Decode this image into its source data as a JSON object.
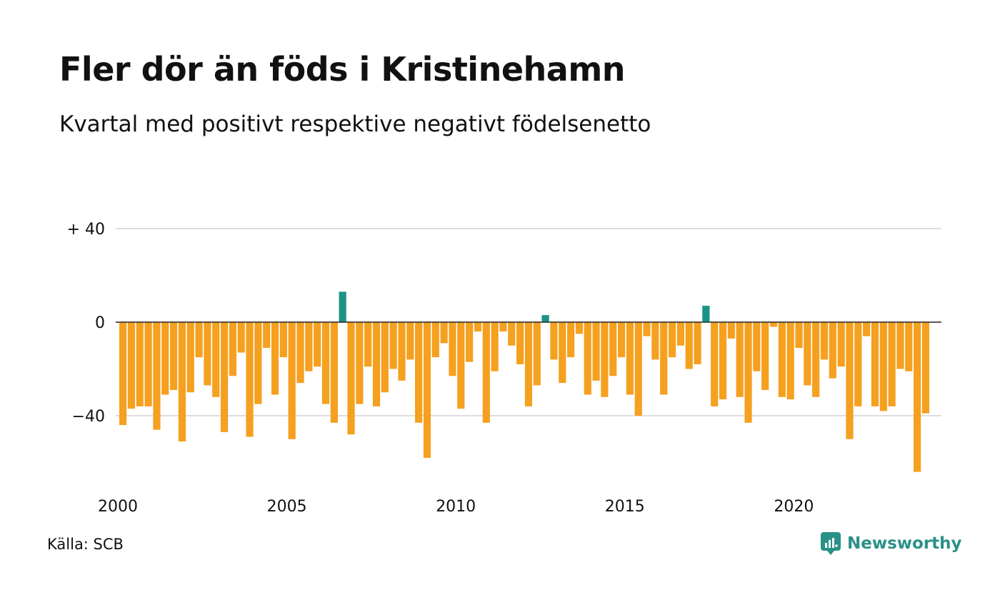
{
  "title": "Fler dör än föds i Kristinehamn",
  "subtitle": "Kvartal med positivt respektive negativt födelsenetto",
  "source": "Källa: SCB",
  "brand": "Newsworthy",
  "colors": {
    "positive": "#1a9386",
    "negative": "#f5a01f",
    "grid": "#dddddd",
    "zero_line": "#222222",
    "brand": "#2a9187"
  },
  "chart_data": {
    "type": "bar",
    "title": "Fler dör än föds i Kristinehamn",
    "subtitle": "Kvartal med positivt respektive negativt födelsenetto",
    "xlabel": "",
    "ylabel": "",
    "ylim": [
      -66,
      40
    ],
    "y_ticks": [
      {
        "value": 40,
        "label": "+ 40"
      },
      {
        "value": 0,
        "label": "0"
      },
      {
        "value": -40,
        "label": "−40"
      }
    ],
    "x_ticks": [
      {
        "value": 2000,
        "label": "2000"
      },
      {
        "value": 2005,
        "label": "2005"
      },
      {
        "value": 2010,
        "label": "2010"
      },
      {
        "value": 2015,
        "label": "2015"
      },
      {
        "value": 2020,
        "label": "2020"
      }
    ],
    "start_year": 2000,
    "periods_per_year": 4,
    "grid": true,
    "values": [
      -44,
      -37,
      -36,
      -36,
      -46,
      -31,
      -29,
      -51,
      -30,
      -15,
      -27,
      -32,
      -47,
      -23,
      -13,
      -49,
      -35,
      -11,
      -31,
      -15,
      -50,
      -26,
      -21,
      -19,
      -35,
      -43,
      13,
      -48,
      -35,
      -19,
      -36,
      -30,
      -20,
      -25,
      -16,
      -43,
      -58,
      -15,
      -9,
      -23,
      -37,
      -17,
      -4,
      -43,
      -21,
      -4,
      -10,
      -18,
      -36,
      -27,
      3,
      -16,
      -26,
      -15,
      -5,
      -31,
      -25,
      -32,
      -23,
      -15,
      -31,
      -40,
      -6,
      -16,
      -31,
      -15,
      -10,
      -20,
      -18,
      7,
      -36,
      -33,
      -7,
      -32,
      -43,
      -21,
      -29,
      -2,
      -32,
      -33,
      -11,
      -27,
      -32,
      -16,
      -24,
      -19,
      -50,
      -36,
      -6,
      -36,
      -38,
      -36,
      -20,
      -21,
      -64,
      -39
    ]
  }
}
